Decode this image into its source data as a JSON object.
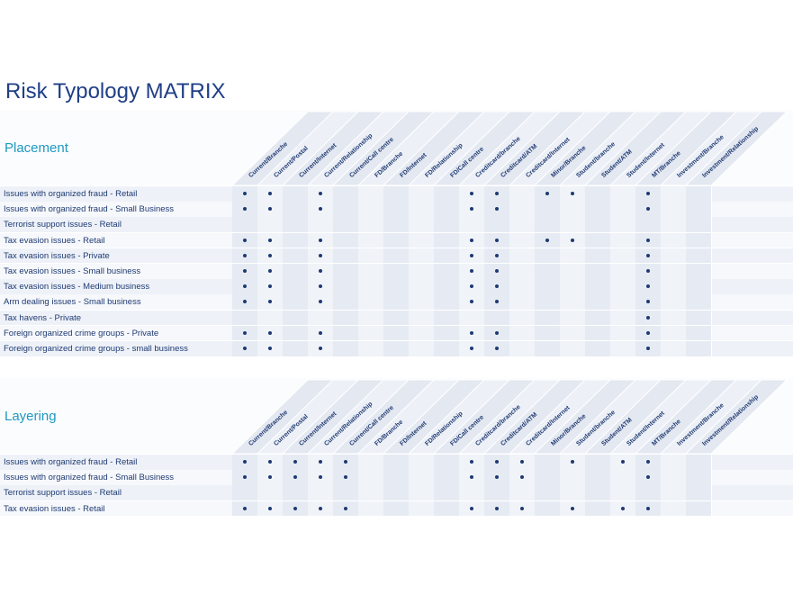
{
  "title": "Risk Typology MATRIX",
  "columns": [
    "Current/Branche",
    "Current/Postal",
    "Current/Internet",
    "Current/Relationship",
    "Current/Call centre",
    "FD/Branche",
    "FD/Internet",
    "FD/Relationship",
    "FD/Call centre",
    "Creditcard/branche",
    "Creditcard/ATM",
    "Creditcard/Internet",
    "Minor/Branche",
    "Student/branche",
    "Student/ATM",
    "Student/Internet",
    "MT/Branche",
    "Investment/Branche",
    "Investment/Relationship"
  ],
  "sections": [
    {
      "name": "Placement",
      "rows": [
        {
          "label": "Issues with organized fraud - Retail",
          "marks": [
            0,
            1,
            3,
            9,
            10,
            12,
            13,
            16
          ]
        },
        {
          "label": "Issues with organized fraud - Small Business",
          "marks": [
            0,
            1,
            3,
            9,
            10,
            16
          ]
        },
        {
          "label": "Terrorist support issues - Retail",
          "marks": []
        },
        {
          "label": "Tax evasion issues - Retail",
          "marks": [
            0,
            1,
            3,
            9,
            10,
            12,
            13,
            16
          ]
        },
        {
          "label": "Tax evasion issues - Private",
          "marks": [
            0,
            1,
            3,
            9,
            10,
            16
          ]
        },
        {
          "label": "Tax evasion issues - Small business",
          "marks": [
            0,
            1,
            3,
            9,
            10,
            16
          ]
        },
        {
          "label": "Tax evasion issues - Medium business",
          "marks": [
            0,
            1,
            3,
            9,
            10,
            16
          ]
        },
        {
          "label": "Arm dealing issues - Small business",
          "marks": [
            0,
            1,
            3,
            9,
            10,
            16
          ]
        },
        {
          "label": "Tax havens - Private",
          "marks": [
            16
          ]
        },
        {
          "label": "Foreign organized crime groups - Private",
          "marks": [
            0,
            1,
            3,
            9,
            10,
            16
          ]
        },
        {
          "label": "Foreign organized crime groups - small business",
          "marks": [
            0,
            1,
            3,
            9,
            10,
            16
          ]
        }
      ]
    },
    {
      "name": "Layering",
      "rows": [
        {
          "label": "Issues with organized fraud - Retail",
          "marks": [
            0,
            1,
            2,
            3,
            4,
            9,
            10,
            11,
            13,
            15,
            16
          ]
        },
        {
          "label": "Issues with organized fraud - Small Business",
          "marks": [
            0,
            1,
            2,
            3,
            4,
            9,
            10,
            11,
            16
          ]
        },
        {
          "label": "Terrorist support issues - Retail",
          "marks": []
        },
        {
          "label": "Tax evasion issues - Retail",
          "marks": [
            0,
            1,
            2,
            3,
            4,
            9,
            10,
            11,
            13,
            15,
            16
          ]
        }
      ]
    }
  ]
}
